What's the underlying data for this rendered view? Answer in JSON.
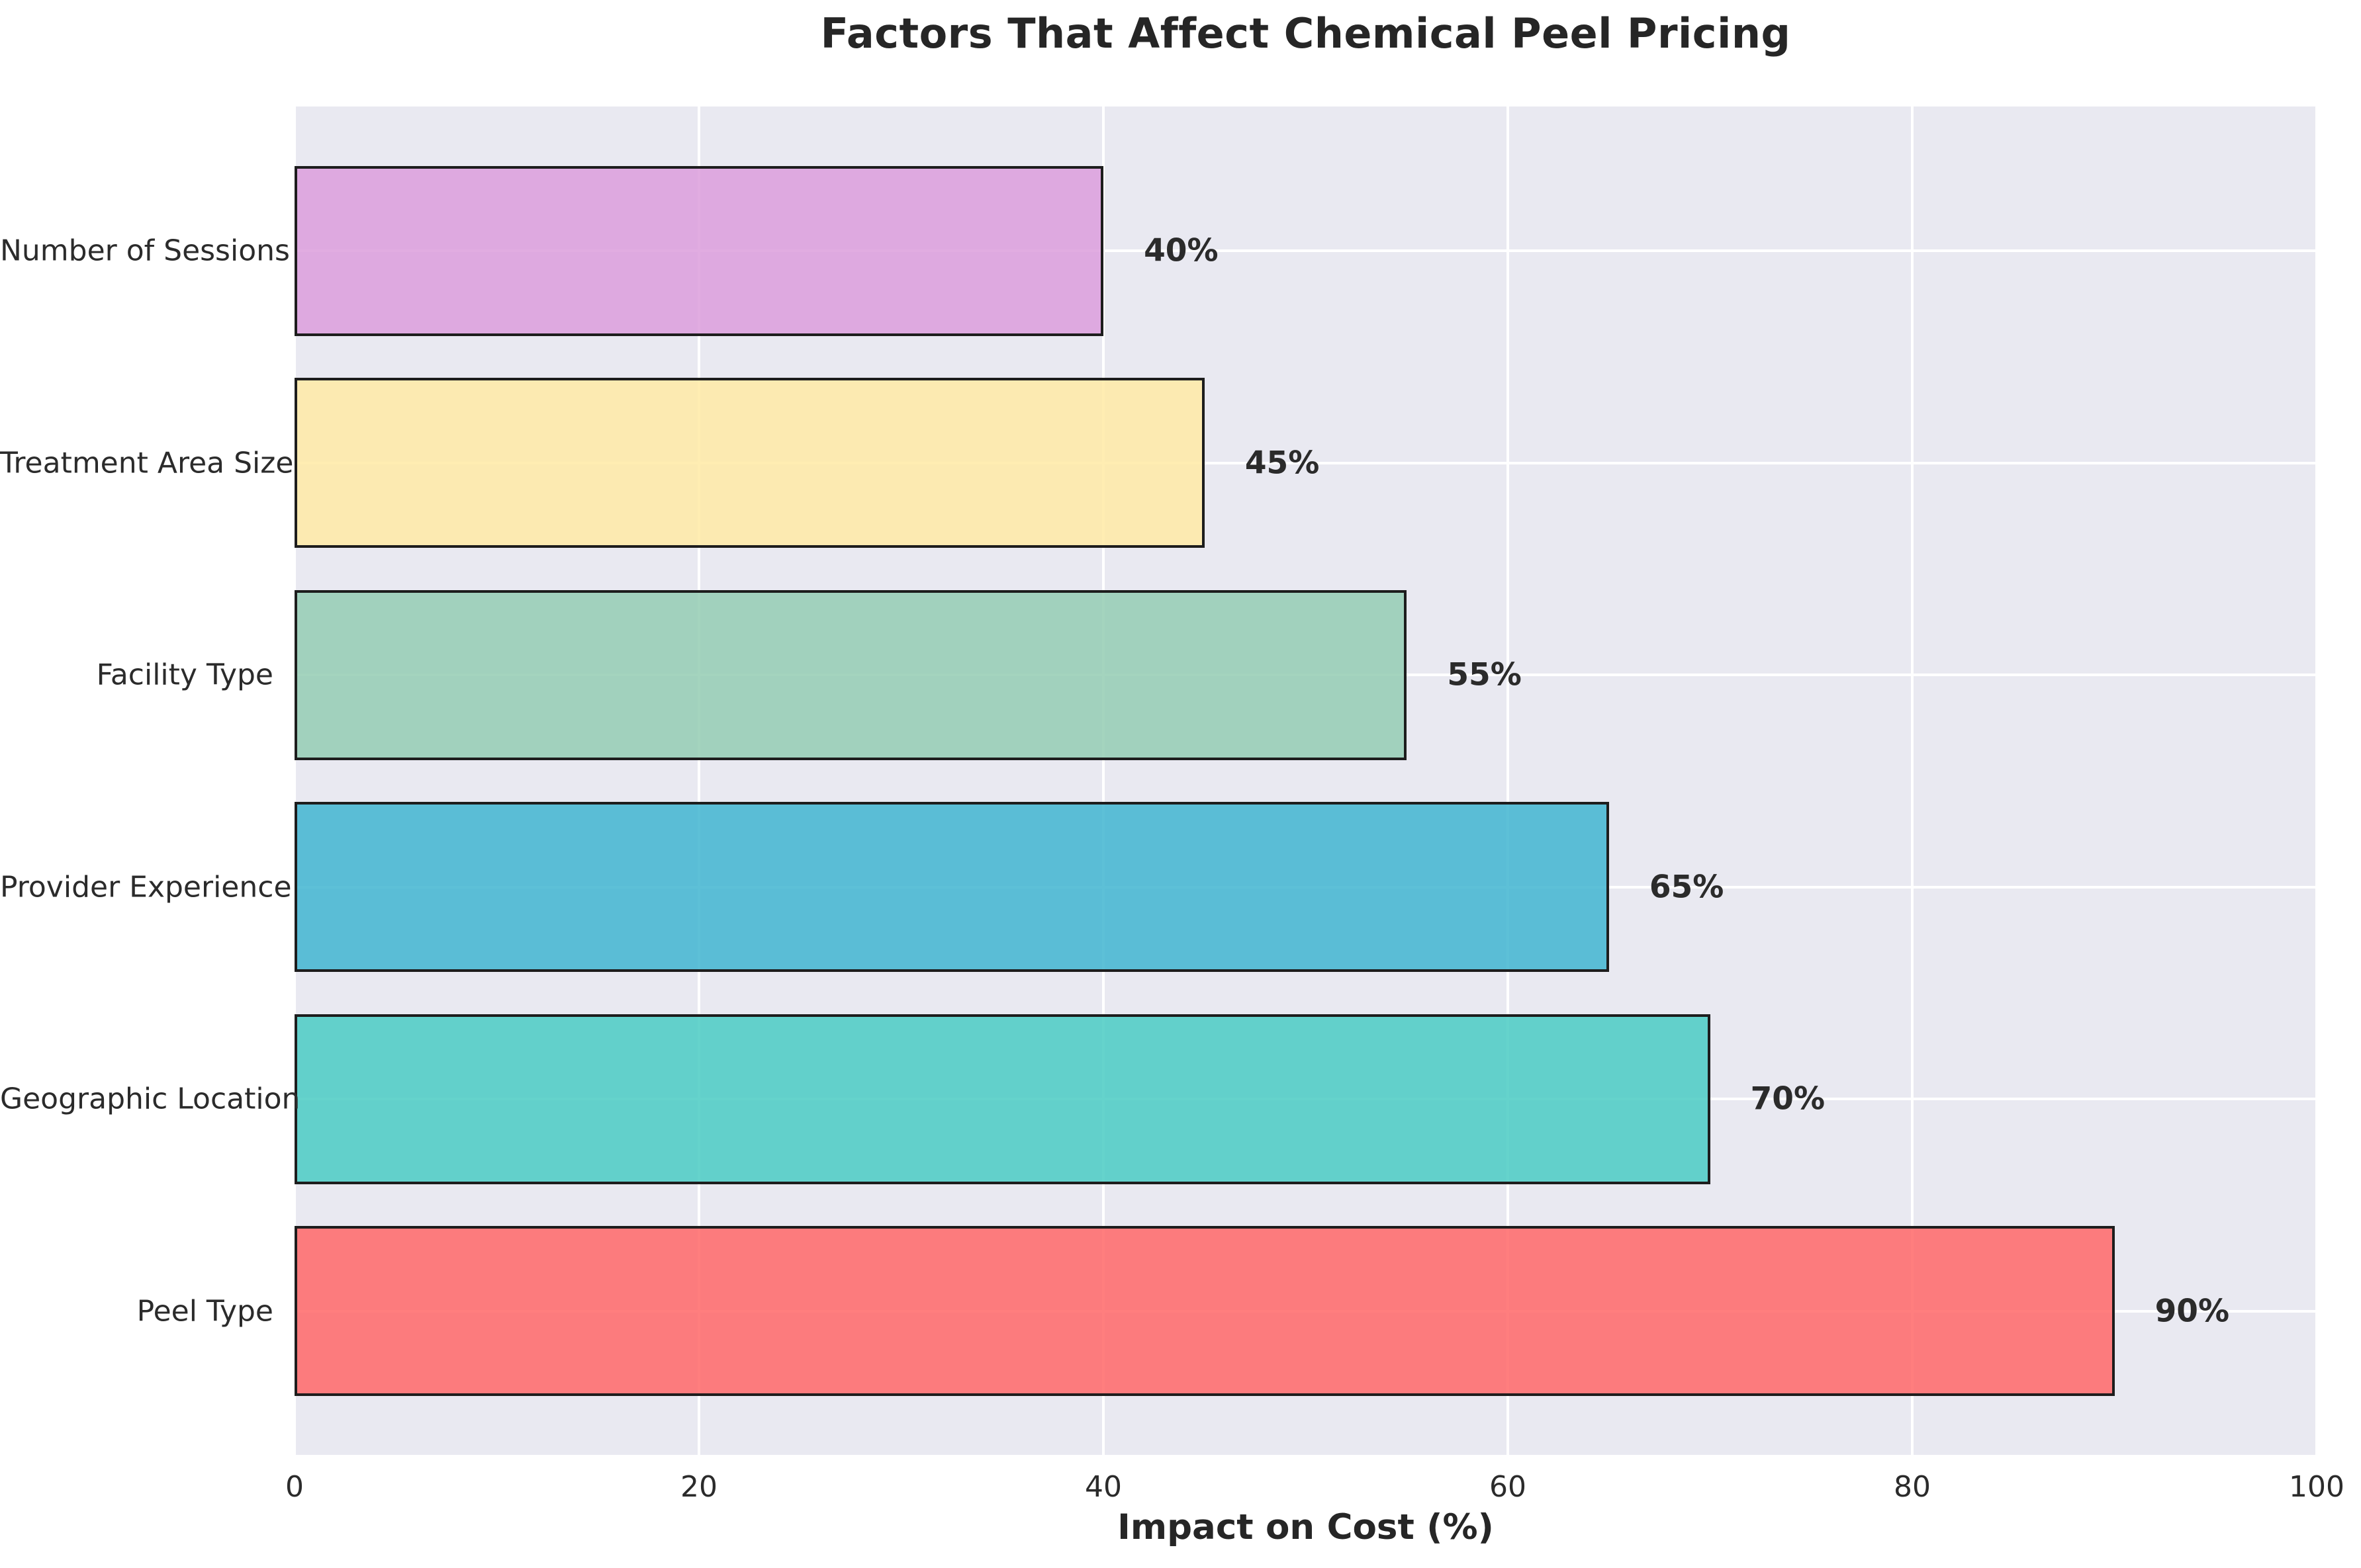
{
  "chart_data": {
    "type": "bar",
    "orientation": "horizontal",
    "title": "Factors That Affect Chemical Peel Pricing",
    "xlabel": "Impact on Cost (%)",
    "ylabel": "",
    "categories": [
      "Number of Sessions",
      "Treatment Area Size",
      "Facility Type",
      "Provider Experience",
      "Geographic Location",
      "Peel Type"
    ],
    "values": [
      40,
      45,
      55,
      65,
      70,
      90
    ],
    "value_labels": [
      "40%",
      "45%",
      "55%",
      "65%",
      "70%",
      "90%"
    ],
    "bar_colors": [
      "#DDA0DD",
      "#FFEAA7",
      "#96CEB4",
      "#45B7D1",
      "#4ECDC4",
      "#FF6B6B"
    ],
    "bar_alpha": 0.87,
    "bar_edge_color": "#1D1D1D",
    "x_ticks": [
      "0",
      "20",
      "40",
      "60",
      "80",
      "100"
    ],
    "x_tick_values": [
      0,
      20,
      40,
      60,
      80,
      100
    ],
    "xlim": [
      0,
      100
    ],
    "grid": true,
    "grid_color": "#FFFFFF",
    "plot_background": "#E9E9F1",
    "figure_background": "#FFFFFF",
    "text_color": "#2B2B2B",
    "title_color": "#262626",
    "legend": false
  }
}
